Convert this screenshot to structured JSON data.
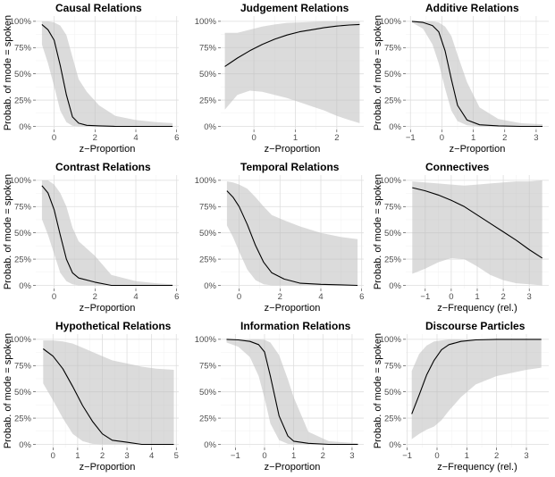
{
  "chart_data": [
    {
      "type": "line",
      "title": "Causal Relations",
      "xlabel": "z−Proportion",
      "ylabel": "Probab. of mode = spoken",
      "xlim": [
        -0.9,
        6.1
      ],
      "ylim": [
        -0.03,
        1.05
      ],
      "xticks": [
        0,
        2,
        4,
        6
      ],
      "xtick_labels": [
        "0",
        "2",
        "4",
        "6"
      ],
      "yticks": [
        0,
        0.25,
        0.5,
        0.75,
        1
      ],
      "ytick_labels": [
        "0%",
        "25%",
        "50%",
        "75%",
        "100%"
      ],
      "grid": true,
      "series": [
        {
          "x": [
            -0.6,
            -0.3,
            0,
            0.3,
            0.6,
            0.9,
            1.2,
            1.6,
            2.2,
            3,
            4,
            5,
            5.8
          ],
          "y": [
            0.97,
            0.92,
            0.82,
            0.58,
            0.3,
            0.09,
            0.03,
            0.01,
            0.005,
            0,
            0,
            0,
            0
          ],
          "lower": [
            0.78,
            0.6,
            0.38,
            0.15,
            0.04,
            0.005,
            0,
            0,
            0,
            0,
            0,
            0,
            0
          ],
          "upper": [
            1,
            1,
            0.99,
            0.96,
            0.87,
            0.66,
            0.45,
            0.33,
            0.2,
            0.1,
            0.06,
            0.04,
            0.03
          ]
        }
      ]
    },
    {
      "type": "line",
      "title": "Judgement Relations",
      "xlabel": "z−Proportion",
      "ylabel": "",
      "xlim": [
        -0.8,
        2.65
      ],
      "ylim": [
        -0.03,
        1.05
      ],
      "xticks": [
        0,
        1,
        2
      ],
      "xtick_labels": [
        "0",
        "1",
        "2"
      ],
      "yticks": [
        0,
        0.25,
        0.5,
        0.75,
        1
      ],
      "ytick_labels": [
        "0%",
        "25%",
        "50%",
        "75%",
        "100%"
      ],
      "grid": true,
      "series": [
        {
          "x": [
            -0.7,
            -0.4,
            -0.1,
            0.2,
            0.5,
            0.8,
            1.1,
            1.4,
            1.7,
            2,
            2.3,
            2.55
          ],
          "y": [
            0.57,
            0.65,
            0.72,
            0.78,
            0.83,
            0.87,
            0.9,
            0.92,
            0.94,
            0.955,
            0.965,
            0.97
          ],
          "lower": [
            0.16,
            0.3,
            0.34,
            0.33,
            0.3,
            0.27,
            0.23,
            0.19,
            0.15,
            0.1,
            0.06,
            0.03
          ],
          "upper": [
            0.89,
            0.89,
            0.92,
            0.95,
            0.97,
            0.985,
            0.99,
            0.995,
            1,
            1,
            1,
            1
          ]
        }
      ]
    },
    {
      "type": "line",
      "title": "Additive Relations",
      "xlabel": "z−Proportion",
      "ylabel": "Probab. of mode = spoken",
      "xlim": [
        -1.15,
        3.4
      ],
      "ylim": [
        -0.03,
        1.05
      ],
      "xticks": [
        -1,
        0,
        1,
        2,
        3
      ],
      "xtick_labels": [
        "−1",
        "0",
        "1",
        "2",
        "3"
      ],
      "yticks": [
        0,
        0.25,
        0.5,
        0.75,
        1
      ],
      "ytick_labels": [
        "0%",
        "25%",
        "50%",
        "75%",
        "100%"
      ],
      "grid": true,
      "series": [
        {
          "x": [
            -0.95,
            -0.6,
            -0.3,
            -0.1,
            0.1,
            0.3,
            0.5,
            0.8,
            1.2,
            1.8,
            2.5,
            3.2
          ],
          "y": [
            1,
            0.99,
            0.96,
            0.9,
            0.72,
            0.45,
            0.2,
            0.06,
            0.015,
            0.005,
            0,
            0
          ],
          "lower": [
            0.99,
            0.93,
            0.78,
            0.6,
            0.36,
            0.15,
            0.05,
            0.01,
            0,
            0,
            0,
            0
          ],
          "upper": [
            1,
            1,
            1,
            0.99,
            0.95,
            0.86,
            0.68,
            0.42,
            0.18,
            0.07,
            0.03,
            0.02
          ]
        }
      ]
    },
    {
      "type": "line",
      "title": "Contrast Relations",
      "xlabel": "z−Proportion",
      "ylabel": "Probab. of mode = spoken",
      "xlim": [
        -0.9,
        6.1
      ],
      "ylim": [
        -0.03,
        1.05
      ],
      "xticks": [
        0,
        2,
        4,
        6
      ],
      "xtick_labels": [
        "0",
        "2",
        "4",
        "6"
      ],
      "yticks": [
        0,
        0.25,
        0.5,
        0.75,
        1
      ],
      "ytick_labels": [
        "0%",
        "25%",
        "50%",
        "75%",
        "100%"
      ],
      "grid": true,
      "series": [
        {
          "x": [
            -0.6,
            -0.3,
            0,
            0.3,
            0.6,
            0.9,
            1.2,
            2,
            2.8,
            4,
            5,
            5.8
          ],
          "y": [
            0.95,
            0.88,
            0.72,
            0.48,
            0.25,
            0.12,
            0.07,
            0.03,
            0,
            0,
            0,
            0
          ],
          "lower": [
            0.63,
            0.48,
            0.3,
            0.12,
            0.04,
            0.01,
            0,
            0,
            0,
            0,
            0,
            0
          ],
          "upper": [
            1,
            1,
            0.96,
            0.88,
            0.75,
            0.55,
            0.42,
            0.28,
            0.1,
            0.04,
            0.02,
            0.01
          ]
        }
      ]
    },
    {
      "type": "line",
      "title": "Temporal Relations",
      "xlabel": "z−Proportion",
      "ylabel": "",
      "xlim": [
        -0.9,
        6.1
      ],
      "ylim": [
        -0.03,
        1.05
      ],
      "xticks": [
        0,
        2,
        4,
        6
      ],
      "xtick_labels": [
        "0",
        "2",
        "4",
        "6"
      ],
      "yticks": [
        0,
        0.25,
        0.5,
        0.75,
        1
      ],
      "ytick_labels": [
        "0%",
        "25%",
        "50%",
        "75%",
        "100%"
      ],
      "grid": true,
      "series": [
        {
          "x": [
            -0.6,
            -0.3,
            0,
            0.4,
            0.8,
            1.2,
            1.6,
            2.2,
            3,
            4,
            5,
            5.8
          ],
          "y": [
            0.9,
            0.84,
            0.75,
            0.58,
            0.38,
            0.22,
            0.12,
            0.06,
            0.02,
            0.01,
            0.005,
            0
          ],
          "lower": [
            0.57,
            0.46,
            0.32,
            0.15,
            0.05,
            0.01,
            0,
            0,
            0,
            0,
            0,
            0
          ],
          "upper": [
            0.99,
            0.98,
            0.96,
            0.92,
            0.84,
            0.75,
            0.67,
            0.62,
            0.56,
            0.5,
            0.46,
            0.44
          ]
        }
      ]
    },
    {
      "type": "line",
      "title": "Connectives",
      "xlabel": "z−Frequency (rel.)",
      "ylabel": "Probab. of mode = spoken",
      "xlim": [
        -1.75,
        3.75
      ],
      "ylim": [
        -0.03,
        1.05
      ],
      "xticks": [
        -1,
        0,
        1,
        2,
        3
      ],
      "xtick_labels": [
        "−1",
        "0",
        "1",
        "2",
        "3"
      ],
      "yticks": [
        0,
        0.25,
        0.5,
        0.75,
        1
      ],
      "ytick_labels": [
        "0%",
        "25%",
        "50%",
        "75%",
        "100%"
      ],
      "grid": true,
      "series": [
        {
          "x": [
            -1.5,
            -1,
            -0.5,
            0,
            0.5,
            1,
            1.5,
            2,
            2.5,
            3,
            3.5
          ],
          "y": [
            0.93,
            0.9,
            0.86,
            0.81,
            0.75,
            0.67,
            0.59,
            0.51,
            0.43,
            0.34,
            0.26
          ],
          "lower": [
            0.11,
            0.16,
            0.22,
            0.26,
            0.25,
            0.18,
            0.1,
            0.05,
            0.02,
            0.01,
            0
          ],
          "upper": [
            0.99,
            0.98,
            0.97,
            0.96,
            0.95,
            0.96,
            0.97,
            0.98,
            0.99,
            0.99,
            1
          ]
        }
      ]
    },
    {
      "type": "line",
      "title": "Hypothetical Relations",
      "xlabel": "z−Proportion",
      "ylabel": "Probab. of mode = spoken",
      "xlim": [
        -0.7,
        5.1
      ],
      "ylim": [
        -0.03,
        1.05
      ],
      "xticks": [
        0,
        1,
        2,
        3,
        4,
        5
      ],
      "xtick_labels": [
        "0",
        "1",
        "2",
        "3",
        "4",
        "5"
      ],
      "yticks": [
        0,
        0.25,
        0.5,
        0.75,
        1
      ],
      "ytick_labels": [
        "0%",
        "25%",
        "50%",
        "75%",
        "100%"
      ],
      "grid": true,
      "series": [
        {
          "x": [
            -0.4,
            0,
            0.4,
            0.8,
            1.2,
            1.6,
            2,
            2.4,
            3,
            3.6,
            4.2,
            4.9
          ],
          "y": [
            0.91,
            0.84,
            0.72,
            0.55,
            0.37,
            0.22,
            0.1,
            0.04,
            0.02,
            0,
            0,
            0
          ],
          "lower": [
            0.58,
            0.42,
            0.25,
            0.1,
            0.03,
            0.005,
            0,
            0,
            0,
            0,
            0,
            0
          ],
          "upper": [
            0.99,
            0.99,
            0.98,
            0.96,
            0.92,
            0.88,
            0.84,
            0.8,
            0.77,
            0.74,
            0.72,
            0.71
          ]
        }
      ]
    },
    {
      "type": "line",
      "title": "Information Relations",
      "xlabel": "z−Proportion",
      "ylabel": "",
      "xlim": [
        -1.5,
        3.4
      ],
      "ylim": [
        -0.03,
        1.05
      ],
      "xticks": [
        -1,
        0,
        1,
        2,
        3
      ],
      "xtick_labels": [
        "−1",
        "0",
        "1",
        "2",
        "3"
      ],
      "yticks": [
        0,
        0.25,
        0.5,
        0.75,
        1
      ],
      "ytick_labels": [
        "0%",
        "25%",
        "50%",
        "75%",
        "100%"
      ],
      "grid": true,
      "series": [
        {
          "x": [
            -1.3,
            -0.9,
            -0.5,
            -0.2,
            0,
            0.2,
            0.5,
            0.8,
            1,
            1.5,
            2.2,
            3.2
          ],
          "y": [
            1,
            0.995,
            0.98,
            0.95,
            0.88,
            0.65,
            0.27,
            0.08,
            0.03,
            0.01,
            0,
            0
          ],
          "lower": [
            0.97,
            0.93,
            0.83,
            0.65,
            0.44,
            0.2,
            0.04,
            0.005,
            0,
            0,
            0,
            0
          ],
          "upper": [
            1,
            1,
            1,
            1,
            0.995,
            0.97,
            0.85,
            0.62,
            0.45,
            0.12,
            0.03,
            0.01
          ]
        }
      ]
    },
    {
      "type": "line",
      "title": "Discourse Particles",
      "xlabel": "z−Frequency (rel.)",
      "ylabel": "Probab. of mode = spoken",
      "xlim": [
        -1.05,
        3.75
      ],
      "ylim": [
        -0.03,
        1.05
      ],
      "xticks": [
        -1,
        0,
        1,
        2,
        3
      ],
      "xtick_labels": [
        "−1",
        "0",
        "1",
        "2",
        "3"
      ],
      "yticks": [
        0,
        0.25,
        0.5,
        0.75,
        1
      ],
      "ytick_labels": [
        "0%",
        "25%",
        "50%",
        "75%",
        "100%"
      ],
      "grid": true,
      "series": [
        {
          "x": [
            -0.85,
            -0.6,
            -0.35,
            -0.1,
            0.15,
            0.4,
            0.8,
            1.3,
            2,
            3,
            3.5
          ],
          "y": [
            0.29,
            0.47,
            0.66,
            0.8,
            0.9,
            0.95,
            0.98,
            0.995,
            1,
            1,
            1
          ],
          "lower": [
            0.05,
            0.1,
            0.14,
            0.17,
            0.23,
            0.32,
            0.45,
            0.57,
            0.65,
            0.71,
            0.73
          ],
          "upper": [
            0.7,
            0.86,
            0.94,
            0.98,
            0.99,
            1,
            1,
            1,
            1,
            1,
            1
          ]
        }
      ]
    }
  ]
}
